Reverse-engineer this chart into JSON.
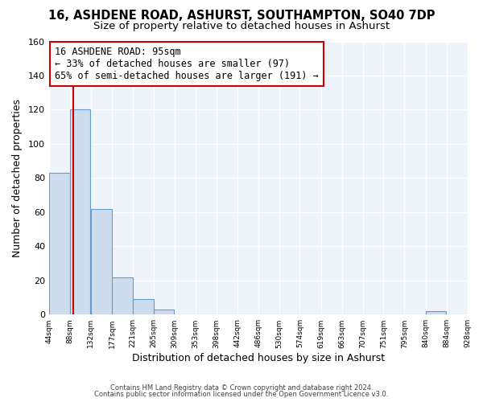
{
  "title": "16, ASHDENE ROAD, ASHURST, SOUTHAMPTON, SO40 7DP",
  "subtitle": "Size of property relative to detached houses in Ashurst",
  "xlabel": "Distribution of detached houses by size in Ashurst",
  "ylabel": "Number of detached properties",
  "bar_values": [
    83,
    120,
    62,
    22,
    9,
    3,
    0,
    0,
    0,
    0,
    0,
    0,
    0,
    0,
    0,
    0,
    0,
    0,
    2,
    0
  ],
  "bin_edges": [
    44,
    88,
    132,
    177,
    221,
    265,
    309,
    353,
    398,
    442,
    486,
    530,
    574,
    619,
    663,
    707,
    751,
    795,
    840,
    884,
    928
  ],
  "tick_labels": [
    "44sqm",
    "88sqm",
    "132sqm",
    "177sqm",
    "221sqm",
    "265sqm",
    "309sqm",
    "353sqm",
    "398sqm",
    "442sqm",
    "486sqm",
    "530sqm",
    "574sqm",
    "619sqm",
    "663sqm",
    "707sqm",
    "751sqm",
    "795sqm",
    "840sqm",
    "884sqm",
    "928sqm"
  ],
  "bar_color": "#cddded",
  "bar_edge_color": "#6699cc",
  "vline_x": 95,
  "vline_color": "#cc0000",
  "annotation_text": "16 ASHDENE ROAD: 95sqm\n← 33% of detached houses are smaller (97)\n65% of semi-detached houses are larger (191) →",
  "annotation_box_color": "#ffffff",
  "annotation_box_edge": "#cc0000",
  "ylim": [
    0,
    160
  ],
  "yticks": [
    0,
    20,
    40,
    60,
    80,
    100,
    120,
    140,
    160
  ],
  "footer1": "Contains HM Land Registry data © Crown copyright and database right 2024.",
  "footer2": "Contains public sector information licensed under the Open Government Licence v3.0.",
  "bg_color": "#ffffff",
  "plot_bg_color": "#eef4fa",
  "title_fontsize": 10.5,
  "subtitle_fontsize": 9.5,
  "grid_color": "#ffffff",
  "annotation_fontsize": 8.5
}
